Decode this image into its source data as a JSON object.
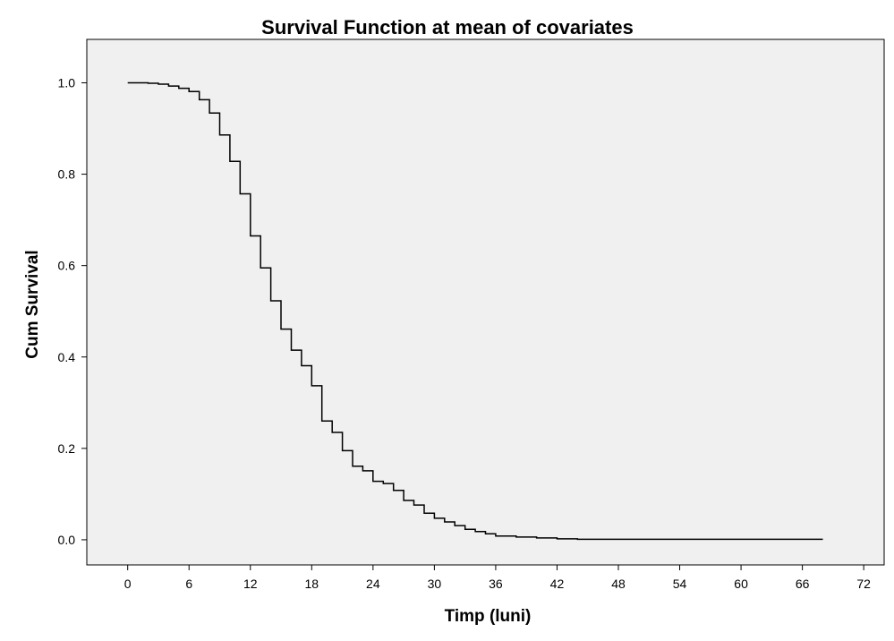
{
  "chart_data": {
    "type": "line",
    "title": "Survival Function at mean of covariates",
    "xlabel": "Timp (luni)",
    "ylabel": "Cum Survival",
    "xlim": [
      -4,
      74
    ],
    "ylim": [
      -0.055,
      1.095
    ],
    "x_ticks": [
      0,
      6,
      12,
      18,
      24,
      30,
      36,
      42,
      48,
      54,
      60,
      66,
      72
    ],
    "y_ticks": [
      0.0,
      0.2,
      0.4,
      0.6,
      0.8,
      1.0
    ],
    "x_tick_labels": [
      "0",
      "6",
      "12",
      "18",
      "24",
      "30",
      "36",
      "42",
      "48",
      "54",
      "60",
      "66",
      "72"
    ],
    "y_tick_labels": [
      "0.0",
      "0.2",
      "0.4",
      "0.6",
      "0.8",
      "1.0"
    ],
    "grid": false,
    "step": true,
    "colors": {
      "plot_background": "#f0f0f0",
      "line": "#000000",
      "frame": "#000000"
    },
    "series": [
      {
        "x": [
          0,
          2,
          3,
          4,
          5,
          6,
          7,
          8,
          9,
          10,
          11,
          12,
          13,
          14,
          15,
          16,
          17,
          18,
          19,
          20,
          21,
          22,
          23,
          24,
          25,
          26,
          27,
          28,
          29,
          30,
          31,
          32,
          33,
          34,
          35,
          36,
          38,
          40,
          42,
          44,
          50,
          68
        ],
        "y": [
          1.0,
          0.999,
          0.997,
          0.993,
          0.988,
          0.981,
          0.963,
          0.934,
          0.886,
          0.828,
          0.757,
          0.665,
          0.595,
          0.523,
          0.461,
          0.415,
          0.381,
          0.337,
          0.26,
          0.235,
          0.195,
          0.161,
          0.151,
          0.128,
          0.123,
          0.108,
          0.086,
          0.076,
          0.058,
          0.047,
          0.039,
          0.031,
          0.023,
          0.018,
          0.013,
          0.008,
          0.006,
          0.004,
          0.002,
          0.001,
          0.001,
          0.001
        ]
      }
    ]
  }
}
